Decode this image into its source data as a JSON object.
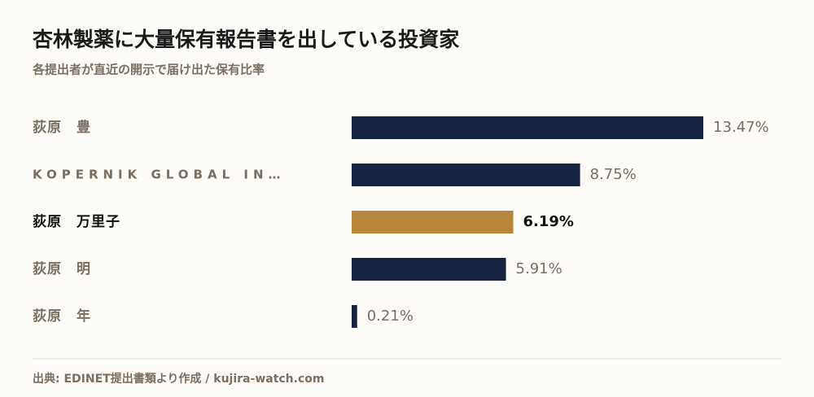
{
  "chart_data": {
    "type": "bar",
    "orientation": "horizontal",
    "title": "杏林製薬に大量保有報告書を出している投資家",
    "subtitle": "各提出者が直近の開示で届け出た保有比率",
    "categories": [
      "荻原　豊",
      "KOPERNIK GLOBAL IN…",
      "荻原　万里子",
      "荻原　明",
      "荻原　年"
    ],
    "values": [
      13.47,
      8.75,
      6.19,
      5.91,
      0.21
    ],
    "value_labels": [
      "13.47%",
      "8.75%",
      "6.19%",
      "5.91%",
      "0.21%"
    ],
    "color": "#172140",
    "highlight_color": "#b8863b",
    "highlight": 2,
    "source": "出典: EDINET提出書類より作成 / kujira-watch.com"
  }
}
